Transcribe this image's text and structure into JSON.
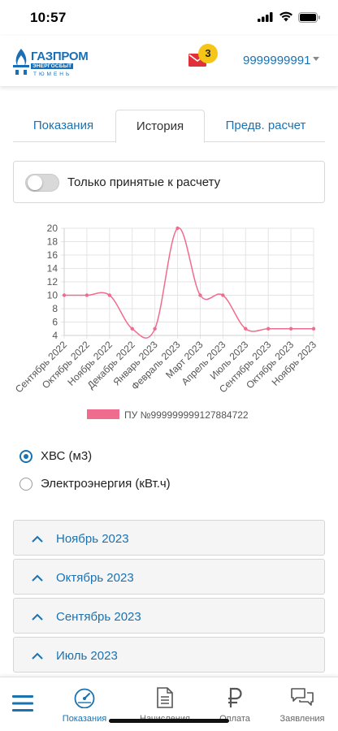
{
  "status_bar": {
    "time": "10:57"
  },
  "header": {
    "logo_line1": "ГАЗПРОМ",
    "logo_line2": "ЭНЕРГОСБЫТ",
    "logo_line3": "ТЮМЕНЬ",
    "notifications_count": "3",
    "account_number": "9999999991"
  },
  "tabs": [
    {
      "label": "Показания"
    },
    {
      "label": "История"
    },
    {
      "label": "Предв. расчет"
    }
  ],
  "filter": {
    "label": "Только принятые к расчету",
    "enabled": false
  },
  "chart_data": {
    "type": "line",
    "categories": [
      "Сентябрь 2022",
      "Октябрь 2022",
      "Ноябрь 2022",
      "Декабрь 2022",
      "Январь 2023",
      "Февраль 2023",
      "Март 2023",
      "Апрель 2023",
      "Июль 2023",
      "Сентябрь 2023",
      "Октябрь 2023",
      "Ноябрь 2023"
    ],
    "series": [
      {
        "name": "ПУ №999999999127884722",
        "values": [
          10,
          10,
          10,
          5,
          5,
          20,
          10,
          10,
          5,
          5,
          5,
          5
        ]
      }
    ],
    "ylim": [
      4,
      20
    ],
    "yticks": [
      4,
      6,
      8,
      10,
      12,
      14,
      16,
      18,
      20
    ],
    "grid": true,
    "legend_position": "bottom",
    "color": "#f06c8e"
  },
  "resource_options": [
    {
      "label": "ХВС (м3)",
      "checked": true
    },
    {
      "label": "Электроэнергия (кВт.ч)",
      "checked": false
    }
  ],
  "periods": [
    {
      "label": "Ноябрь 2023"
    },
    {
      "label": "Октябрь 2023"
    },
    {
      "label": "Сентябрь 2023"
    },
    {
      "label": "Июль 2023"
    }
  ],
  "bottom_nav": [
    {
      "label": "Показания",
      "icon": "gauge-icon",
      "active": true
    },
    {
      "label": "Начисления",
      "icon": "document-icon",
      "active": false
    },
    {
      "label": "Оплата",
      "icon": "ruble-icon",
      "active": false
    },
    {
      "label": "Заявления",
      "icon": "chat-icon",
      "active": false
    }
  ],
  "colors": {
    "accent": "#1a72b0",
    "line": "#f06c8e",
    "badge": "#f5c518",
    "mail": "#e0303a"
  }
}
